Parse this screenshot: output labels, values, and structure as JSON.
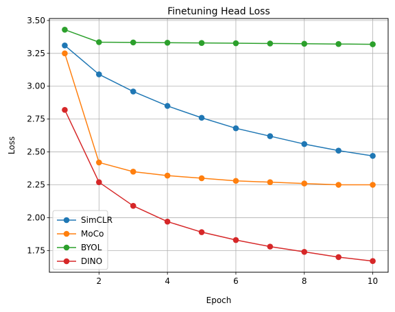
{
  "chart_data": {
    "type": "line",
    "title": "Finetuning Head Loss",
    "xlabel": "Epoch",
    "ylabel": "Loss",
    "x": [
      1,
      2,
      3,
      4,
      5,
      6,
      7,
      8,
      9,
      10
    ],
    "xlim": [
      0.55,
      10.45
    ],
    "ylim": [
      1.585,
      3.515
    ],
    "xticks": [
      2,
      4,
      6,
      8,
      10
    ],
    "xtick_labels": [
      "2",
      "4",
      "6",
      "8",
      "10"
    ],
    "yticks": [
      1.75,
      2.0,
      2.25,
      2.5,
      2.75,
      3.0,
      3.25,
      3.5
    ],
    "ytick_labels": [
      "1.75",
      "2.00",
      "2.25",
      "2.50",
      "2.75",
      "3.00",
      "3.25",
      "3.50"
    ],
    "grid": true,
    "legend_position": "lower-left",
    "series": [
      {
        "name": "SimCLR",
        "color": "#1f77b4",
        "values": [
          3.31,
          3.09,
          2.96,
          2.85,
          2.76,
          2.68,
          2.62,
          2.56,
          2.51,
          2.47
        ]
      },
      {
        "name": "MoCo",
        "color": "#ff7f0e",
        "values": [
          3.25,
          2.42,
          2.35,
          2.32,
          2.3,
          2.28,
          2.27,
          2.26,
          2.25,
          2.25
        ]
      },
      {
        "name": "BYOL",
        "color": "#2ca02c",
        "values": [
          3.43,
          3.335,
          3.333,
          3.331,
          3.329,
          3.327,
          3.325,
          3.323,
          3.321,
          3.319
        ]
      },
      {
        "name": "DINO",
        "color": "#d62728",
        "values": [
          2.82,
          2.27,
          2.09,
          1.97,
          1.89,
          1.83,
          1.78,
          1.74,
          1.7,
          1.67
        ]
      }
    ]
  }
}
